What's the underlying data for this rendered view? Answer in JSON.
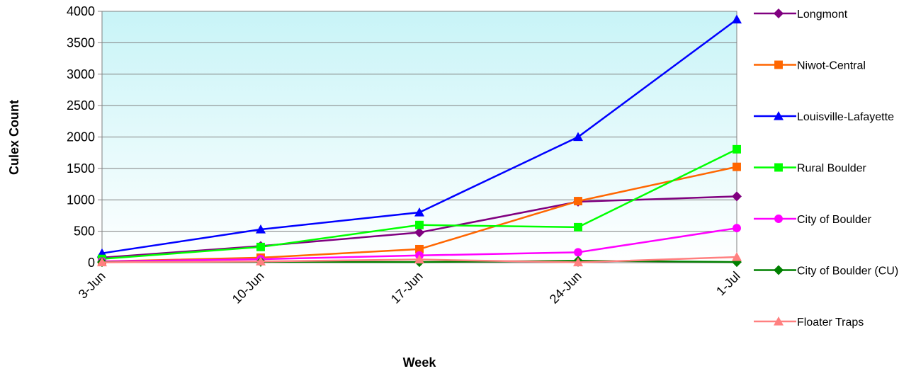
{
  "chart_data": {
    "type": "line",
    "title": "",
    "xlabel": "Week",
    "ylabel": "Culex Count",
    "categories": [
      "3-Jun",
      "10-Jun",
      "17-Jun",
      "24-Jun",
      "1-Jul"
    ],
    "ylim": [
      0,
      4000
    ],
    "yticks": [
      0,
      500,
      1000,
      1500,
      2000,
      2500,
      3000,
      3500,
      4000
    ],
    "grid": "horizontal",
    "legend_position": "right",
    "plot_background": "gradient light cyan",
    "series": [
      {
        "name": "Longmont",
        "color": "#800080",
        "marker": "diamond",
        "values": [
          80,
          265,
          480,
          970,
          1055
        ]
      },
      {
        "name": "Niwot-Central",
        "color": "#FF6600",
        "marker": "square",
        "values": [
          20,
          80,
          215,
          980,
          1525
        ]
      },
      {
        "name": "Louisville-Lafayette",
        "color": "#0000FF",
        "marker": "triangle",
        "values": [
          150,
          530,
          800,
          2000,
          3870
        ]
      },
      {
        "name": "Rural Boulder",
        "color": "#00FF00",
        "marker": "square",
        "values": [
          60,
          250,
          600,
          565,
          1805
        ]
      },
      {
        "name": "City of Boulder",
        "color": "#FF00FF",
        "marker": "circle",
        "values": [
          20,
          55,
          115,
          165,
          550
        ]
      },
      {
        "name": "City of Boulder (CU)",
        "color": "#008000",
        "marker": "diamond",
        "values": [
          10,
          15,
          10,
          30,
          10
        ]
      },
      {
        "name": "Floater Traps",
        "color": "#FF8080",
        "marker": "triangle",
        "values": [
          5,
          20,
          50,
          5,
          90
        ]
      }
    ]
  }
}
